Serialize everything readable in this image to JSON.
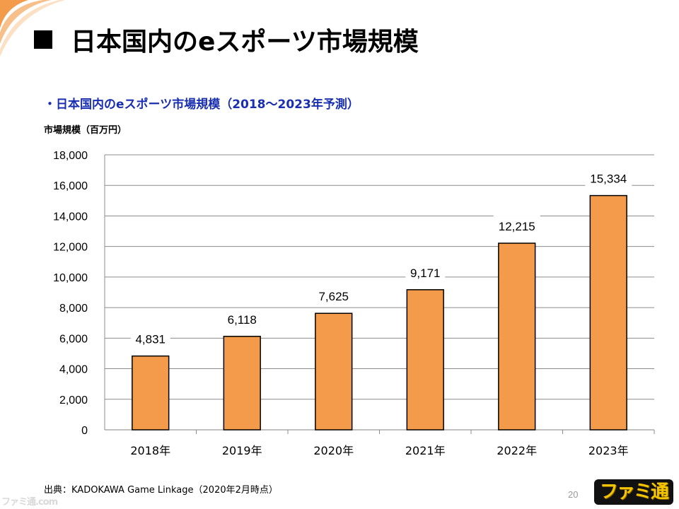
{
  "slide": {
    "title": "日本国内のeスポーツ市場規模",
    "page_number": "20",
    "source": "出典：KADOKAWA Game Linkage（2020年2月時点）"
  },
  "branding": {
    "logo_text": "ファミ通",
    "watermark_text": "ファミ通.com",
    "accent_color": "#f39b4a",
    "subtitle_color": "#1a2fb0"
  },
  "chart_data": {
    "type": "bar",
    "title": "・日本国内のeスポーツ市場規模（2018～2023年予測）",
    "ylabel": "市場規模（百万円）",
    "xlabel": "",
    "categories": [
      "2018年",
      "2019年",
      "2020年",
      "2021年",
      "2022年",
      "2023年"
    ],
    "values": [
      4831,
      6118,
      7625,
      9171,
      12215,
      15334
    ],
    "value_labels": [
      "4,831",
      "6,118",
      "7,625",
      "9,171",
      "12,215",
      "15,334"
    ],
    "ylim": [
      0,
      18000
    ],
    "yticks": [
      0,
      2000,
      4000,
      6000,
      8000,
      10000,
      12000,
      14000,
      16000,
      18000
    ],
    "ytick_labels": [
      "0",
      "2,000",
      "4,000",
      "6,000",
      "8,000",
      "10,000",
      "12,000",
      "14,000",
      "16,000",
      "18,000"
    ],
    "grid": true,
    "bar_color": "#f39b4a",
    "bar_edge_color": "#000000"
  }
}
